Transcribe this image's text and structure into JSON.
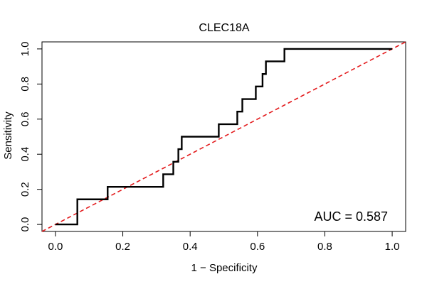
{
  "chart_data": {
    "type": "line",
    "title": "CLEC18A",
    "xlabel": "1 − Specificity",
    "ylabel": "Sensitivity",
    "xlim": [
      -0.04,
      1.04
    ],
    "ylim": [
      -0.04,
      1.04
    ],
    "xticks": [
      0.0,
      0.2,
      0.4,
      0.6,
      0.8,
      1.0
    ],
    "yticks": [
      0.0,
      0.2,
      0.4,
      0.6,
      0.8,
      1.0
    ],
    "xtick_labels": [
      "0.0",
      "0.2",
      "0.4",
      "0.6",
      "0.8",
      "1.0"
    ],
    "ytick_labels": [
      "0.0",
      "0.2",
      "0.4",
      "0.6",
      "0.8",
      "1.0"
    ],
    "annotation": "AUC = 0.587",
    "grid": false,
    "series": [
      {
        "color": "#000000",
        "x": [
          0.0,
          0.065,
          0.065,
          0.155,
          0.155,
          0.32,
          0.32,
          0.35,
          0.35,
          0.365,
          0.365,
          0.375,
          0.375,
          0.485,
          0.485,
          0.54,
          0.54,
          0.555,
          0.555,
          0.595,
          0.595,
          0.615,
          0.615,
          0.625,
          0.625,
          0.68,
          0.68,
          1.0
        ],
        "y": [
          0.0,
          0.0,
          0.143,
          0.143,
          0.214,
          0.214,
          0.286,
          0.286,
          0.357,
          0.357,
          0.429,
          0.429,
          0.5,
          0.5,
          0.571,
          0.571,
          0.643,
          0.643,
          0.714,
          0.714,
          0.786,
          0.786,
          0.857,
          0.857,
          0.929,
          0.929,
          1.0,
          1.0
        ]
      },
      {
        "color": "#e31a1c",
        "dashed": true,
        "x": [
          -0.04,
          1.04
        ],
        "y": [
          -0.04,
          1.04
        ]
      }
    ]
  }
}
